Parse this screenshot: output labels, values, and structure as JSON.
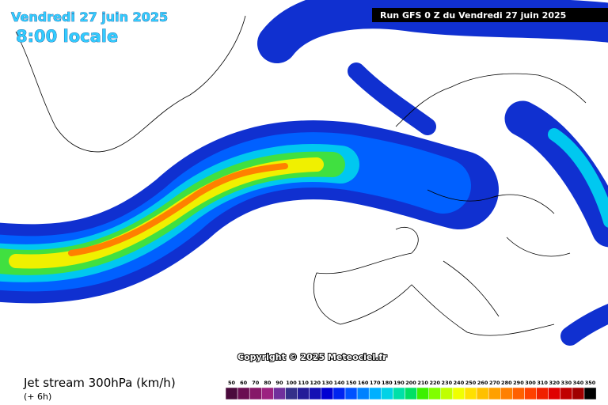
{
  "header": {
    "date": "Vendredi 27 juin 2025",
    "time": "8:00 locale",
    "run": "Run GFS 0 Z du Vendredi 27 juin 2025"
  },
  "copyright": "Copyright © 2025 Meteociel.fr",
  "footer": {
    "title": "Jet stream 300hPa (km/h)",
    "lead": "(+ 6h)"
  },
  "legend": {
    "labels": [
      50,
      60,
      70,
      80,
      90,
      100,
      110,
      120,
      130,
      140,
      150,
      160,
      170,
      180,
      190,
      200,
      210,
      220,
      230,
      240,
      250,
      260,
      270,
      280,
      290,
      300,
      310,
      320,
      330,
      340,
      350
    ],
    "colors": [
      "#4a0a3c",
      "#6a0e52",
      "#861868",
      "#9c2280",
      "#70309c",
      "#34308a",
      "#241c98",
      "#1410b4",
      "#0000d2",
      "#0024f0",
      "#0052ff",
      "#0082ff",
      "#00b0ff",
      "#00d2e6",
      "#00e0a8",
      "#00e064",
      "#3cf000",
      "#80ff00",
      "#c0ff00",
      "#f0ff00",
      "#ffe000",
      "#ffc000",
      "#ffa000",
      "#ff8000",
      "#ff6000",
      "#ff4000",
      "#f02000",
      "#e00000",
      "#c00000",
      "#a00000",
      "#000000"
    ]
  }
}
